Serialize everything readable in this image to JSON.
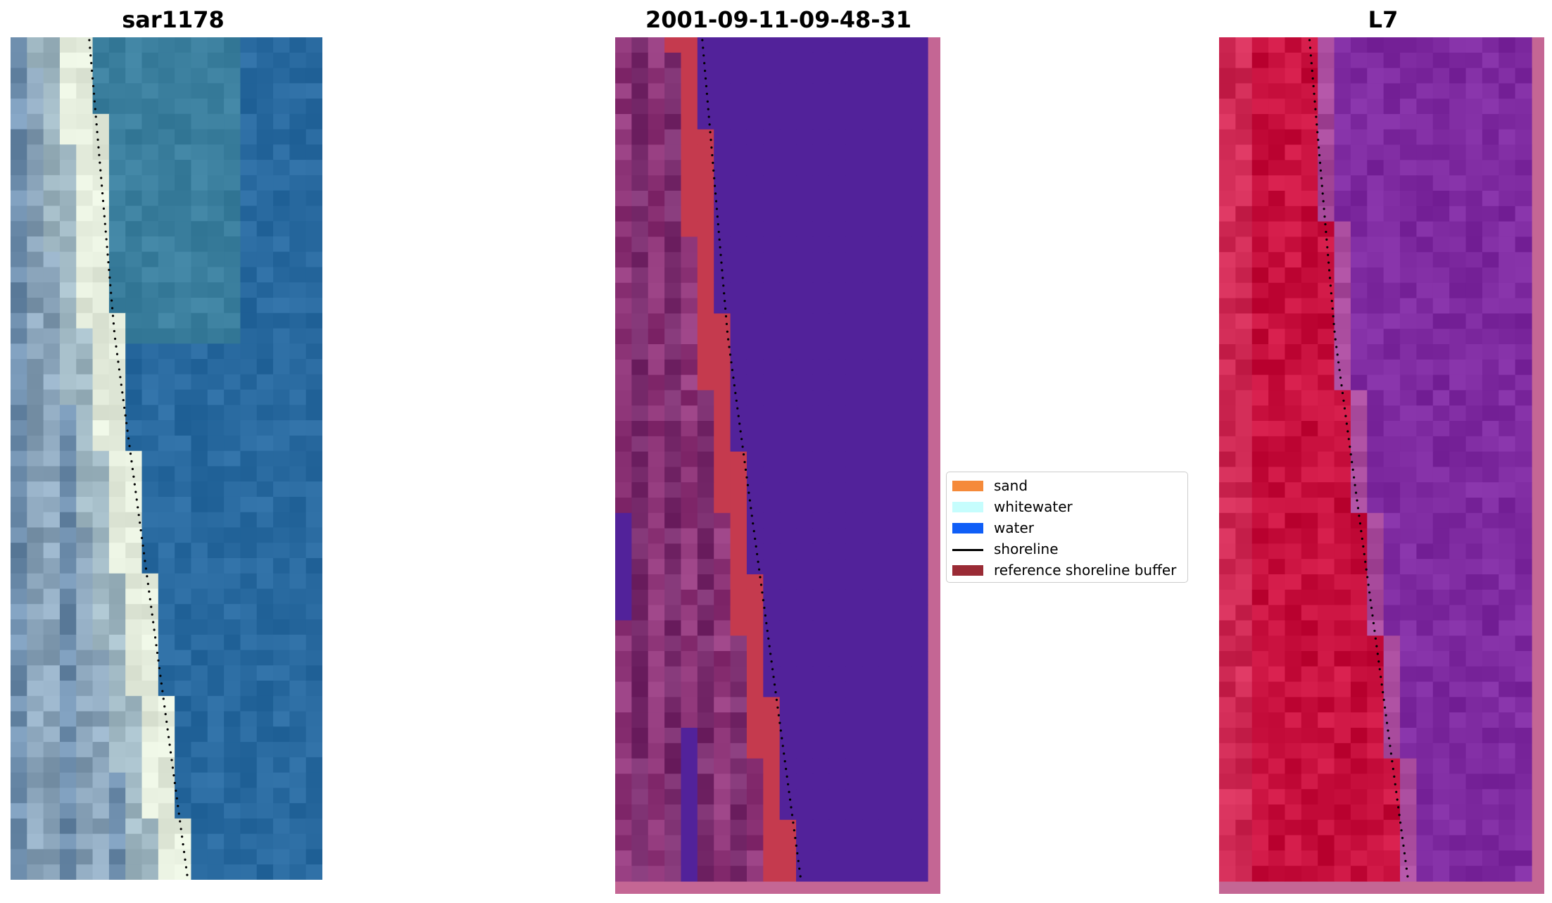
{
  "panels": [
    {
      "title": "sar1178"
    },
    {
      "title": "2001-09-11-09-48-31"
    },
    {
      "title": "L7"
    }
  ],
  "legend": {
    "placement": "center",
    "items": [
      {
        "label": "sand",
        "color": "#f58a3a",
        "kind": "patch"
      },
      {
        "label": "whitewater",
        "color": "#c6fdfd",
        "kind": "patch"
      },
      {
        "label": "water",
        "color": "#0f5ef7",
        "kind": "patch"
      },
      {
        "label": "shoreline",
        "color": "#000000",
        "kind": "line"
      },
      {
        "label": "reference shoreline buffer",
        "color": "#9a2b35",
        "kind": "patch"
      }
    ]
  },
  "colors": {
    "water_rgb": "#2b6d9e",
    "beach_rgb": "#dfe6d8",
    "classified_water": "#52229a",
    "classified_sand": "#c53a4e",
    "buffer_land": "#7a2d6e",
    "border_pink": "#c46694",
    "nir_land": "#c8103e",
    "nir_water": "#7e2aa0"
  }
}
